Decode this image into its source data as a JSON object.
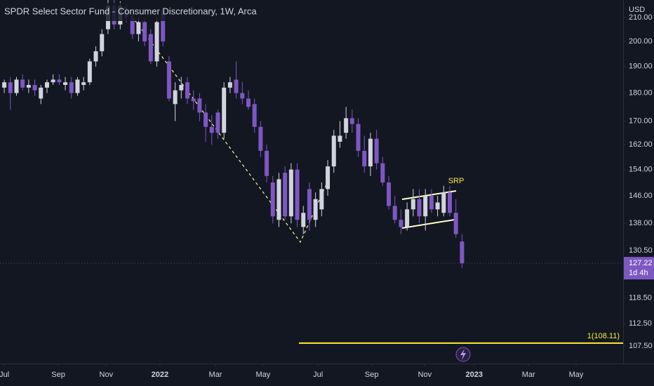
{
  "chart_data": {
    "type": "candlestick",
    "title": "SPDR Select Sector Fund - Consumer Discretionary, 1W, Arca",
    "currency": "USD",
    "x": [
      0,
      1,
      2,
      3,
      4,
      5,
      6,
      7,
      8,
      9,
      10,
      11,
      12,
      13,
      14,
      15,
      16,
      17,
      18,
      19,
      20,
      21,
      22,
      23,
      24,
      25,
      26,
      27,
      28,
      29,
      30,
      31,
      32,
      33,
      34,
      35,
      36,
      37,
      38,
      39,
      40,
      41,
      42,
      43,
      44,
      45,
      46,
      47,
      48,
      49,
      50,
      51,
      52,
      53,
      54,
      55,
      56,
      57,
      58,
      59,
      60,
      61,
      62,
      63,
      64,
      65,
      66,
      67,
      68,
      69,
      70,
      71,
      72,
      73,
      74,
      75
    ],
    "open": [
      182,
      184,
      180,
      185,
      182,
      183,
      178,
      182,
      184,
      185,
      183,
      184,
      180,
      183,
      184,
      192,
      196,
      205,
      215,
      207,
      214,
      210,
      203,
      208,
      203,
      192,
      213,
      192,
      176,
      181,
      184,
      178,
      178,
      173,
      168,
      173,
      166,
      182,
      185,
      180,
      178,
      176,
      168,
      160,
      150,
      139,
      153,
      140,
      154,
      137,
      148,
      139,
      142,
      148,
      155,
      163,
      166,
      171,
      169,
      160,
      155,
      164,
      156,
      150,
      143,
      139,
      137,
      142,
      145,
      140,
      146,
      142,
      141,
      147,
      141,
      133
    ],
    "high": [
      185,
      186,
      186,
      187,
      185,
      185,
      183,
      185,
      187,
      187,
      186,
      186,
      186,
      186,
      193,
      198,
      205,
      218,
      218,
      217,
      216,
      212,
      210,
      210,
      205,
      210,
      214,
      194,
      184,
      186,
      186,
      181,
      180,
      176,
      172,
      174,
      184,
      186,
      192,
      184,
      181,
      178,
      170,
      162,
      152,
      153,
      155,
      156,
      156,
      143,
      150,
      147,
      150,
      157,
      167,
      170,
      175,
      174,
      171,
      165,
      166,
      167,
      158,
      152,
      146,
      142,
      144,
      148,
      148,
      148,
      148,
      146,
      149,
      149,
      145,
      135
    ],
    "low": [
      180,
      174,
      179,
      181,
      180,
      179,
      176,
      180,
      183,
      183,
      181,
      178,
      179,
      181,
      183,
      190,
      194,
      203,
      205,
      205,
      208,
      201,
      200,
      198,
      191,
      190,
      198,
      177,
      170,
      178,
      176,
      174,
      170,
      163,
      162,
      164,
      164,
      180,
      178,
      176,
      174,
      166,
      158,
      150,
      138,
      137,
      139,
      138,
      137,
      135,
      136,
      137,
      140,
      146,
      153,
      161,
      164,
      166,
      158,
      153,
      152,
      154,
      149,
      142,
      138,
      135,
      136,
      140,
      138,
      136,
      141,
      140,
      140,
      140,
      134,
      126
    ],
    "close": [
      184,
      180,
      185,
      182,
      183,
      181,
      182,
      184,
      185,
      184,
      184,
      180,
      185,
      184,
      192,
      196,
      203,
      215,
      207,
      215,
      210,
      203,
      208,
      200,
      192,
      208,
      200,
      178,
      181,
      183,
      178,
      177,
      173,
      168,
      166,
      166,
      182,
      184,
      180,
      178,
      175,
      168,
      160,
      152,
      140,
      151,
      140,
      154,
      139,
      141,
      139,
      145,
      148,
      155,
      165,
      165,
      171,
      169,
      160,
      155,
      164,
      156,
      150,
      143,
      139,
      137,
      142,
      145,
      140,
      146,
      142,
      144,
      147,
      141,
      135,
      127.22
    ],
    "up_color": "#d1d4dc",
    "down_color": "#7e57c2",
    "log_scale": true,
    "xlim": [
      -0.7,
      101.4
    ],
    "xticks": [
      {
        "value": 0,
        "label": "Jul"
      },
      {
        "value": 8.85,
        "label": "Sep"
      },
      {
        "value": 16.7,
        "label": "Nov"
      },
      {
        "value": 25.5,
        "label": "2022"
      },
      {
        "value": 34.6,
        "label": "Mar"
      },
      {
        "value": 42.4,
        "label": "May"
      },
      {
        "value": 51.4,
        "label": "Jul"
      },
      {
        "value": 60.2,
        "label": "Sep"
      },
      {
        "value": 68.9,
        "label": "Nov"
      },
      {
        "value": 77,
        "label": "2023"
      },
      {
        "value": 85.9,
        "label": "Mar"
      },
      {
        "value": 93.7,
        "label": "May"
      }
    ],
    "ylim": [
      103.7,
      217.6
    ],
    "yticks": [
      {
        "value": 107.5,
        "label": "107.50"
      },
      {
        "value": 112.5,
        "label": "112.50"
      },
      {
        "value": 118.5,
        "label": "118.50"
      },
      {
        "value": 130.5,
        "label": "130.50"
      },
      {
        "value": 138,
        "label": "138.00"
      },
      {
        "value": 146,
        "label": "146.00"
      },
      {
        "value": 154,
        "label": "154.00"
      },
      {
        "value": 162,
        "label": "162.00"
      },
      {
        "value": 170,
        "label": "170.00"
      },
      {
        "value": 180,
        "label": "180.00"
      },
      {
        "value": 190,
        "label": "190.00"
      },
      {
        "value": 200,
        "label": "200.00"
      },
      {
        "value": 210,
        "label": "210.00"
      }
    ],
    "last_price": 127.22,
    "countdown": "1d 4h",
    "horizontal_line": {
      "value": 108.11,
      "label": "1(108.11)",
      "color": "#ffeb3b"
    },
    "annotation": "SRP"
  }
}
